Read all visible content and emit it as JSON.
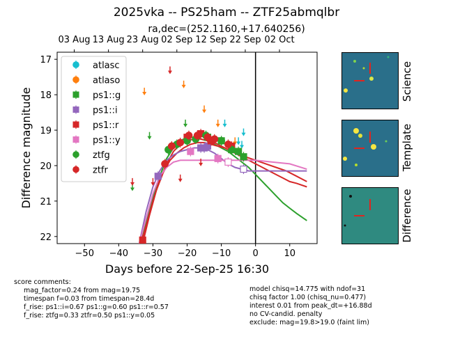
{
  "title": "2025vka -- PS25ham -- ZTF25abmqlbr",
  "subtitle": "ra,dec=(252.1160,+17.640256)",
  "chart_data": {
    "type": "scatter",
    "xlabel": "Days before 22-Sep-25 16:30",
    "ylabel": "Difference magnitude",
    "xlim": [
      -58,
      18
    ],
    "ylim": [
      22.2,
      16.8
    ],
    "y_inverted": true,
    "x_ticks": [
      -50,
      -40,
      -30,
      -20,
      -10,
      0,
      10
    ],
    "y_ticks": [
      17,
      18,
      19,
      20,
      21,
      22
    ],
    "top_axis_ticks": [
      {
        "x": -53,
        "label": "03 Aug"
      },
      {
        "x": -43,
        "label": "13 Aug"
      },
      {
        "x": -33,
        "label": "23 Aug"
      },
      {
        "x": -23,
        "label": "02 Sep"
      },
      {
        "x": -13,
        "label": "12 Sep"
      },
      {
        "x": -3,
        "label": "22 Sep"
      },
      {
        "x": 7,
        "label": "02 Oct"
      }
    ],
    "legend_position": "top-left",
    "now_line_x": 0,
    "series": [
      {
        "name": "atlasc",
        "color": "#17becf",
        "marker": "circle",
        "upper_limits": [
          [
            -9,
            18.8
          ],
          [
            -5,
            19.3
          ],
          [
            -4,
            19.4
          ],
          [
            -3.5,
            19.05
          ]
        ]
      },
      {
        "name": "atlaso",
        "color": "#ff7f0e",
        "marker": "circle",
        "upper_limits": [
          [
            -32.5,
            17.9
          ],
          [
            -21,
            17.7
          ],
          [
            -15,
            18.4
          ],
          [
            -11,
            18.8
          ],
          [
            -6,
            19.3
          ],
          [
            -17,
            19.2
          ]
        ]
      },
      {
        "name": "ps1::g",
        "color": "#2ca02c",
        "marker": "square",
        "points": [
          [
            -14,
            19.2
          ],
          [
            -10,
            19.3
          ],
          [
            -7,
            19.55
          ],
          [
            -5,
            19.6
          ],
          [
            -3.5,
            19.75
          ]
        ]
      },
      {
        "name": "ps1::i",
        "color": "#9467bd",
        "marker": "square",
        "points": [
          [
            -28.5,
            20.3
          ],
          [
            -16,
            19.5
          ],
          [
            -15,
            19.5
          ],
          [
            -14,
            19.45
          ],
          [
            -3.5,
            20.1
          ]
        ],
        "open": [
          [
            -3.5,
            20.1
          ]
        ]
      },
      {
        "name": "ps1::r",
        "color": "#d62728",
        "marker": "square",
        "points": [
          [
            -33,
            22.1
          ],
          [
            -20,
            19.2
          ],
          [
            -16,
            19.1
          ],
          [
            -13,
            19.3
          ],
          [
            -7,
            19.45
          ]
        ]
      },
      {
        "name": "ps1::y",
        "color": "#e377c2",
        "marker": "square",
        "points": [
          [
            -19,
            19.6
          ],
          [
            -11,
            19.8
          ],
          [
            -8,
            19.9
          ]
        ],
        "open": [
          [
            -8,
            19.9
          ]
        ]
      },
      {
        "name": "ztfg",
        "color": "#2ca02c",
        "marker": "circle",
        "points": [
          [
            -25.5,
            19.55
          ],
          [
            -23,
            19.4
          ],
          [
            -20,
            19.3
          ],
          [
            -17.5,
            19.25
          ],
          [
            -14.5,
            19.15
          ],
          [
            -10,
            19.3
          ],
          [
            -7,
            19.55
          ]
        ],
        "upper_limits": [
          [
            -36,
            20.6
          ],
          [
            -31,
            19.15
          ],
          [
            -20.5,
            18.8
          ]
        ]
      },
      {
        "name": "ztfr",
        "color": "#d62728",
        "marker": "circle",
        "points": [
          [
            -26.5,
            19.95
          ],
          [
            -24.5,
            19.45
          ],
          [
            -22,
            19.35
          ],
          [
            -19.5,
            19.15
          ],
          [
            -17,
            19.15
          ],
          [
            -14,
            19.2
          ],
          [
            -12,
            19.25
          ],
          [
            -8,
            19.4
          ]
        ],
        "upper_limits": [
          [
            -36,
            20.45
          ],
          [
            -30,
            20.45
          ],
          [
            -25,
            17.3
          ],
          [
            -22,
            20.35
          ],
          [
            -16,
            19.9
          ]
        ]
      }
    ],
    "model_curves": [
      {
        "name": "ztfg-fit",
        "color": "#2ca02c",
        "points": [
          [
            -34,
            22.2
          ],
          [
            -32,
            21.6
          ],
          [
            -30,
            20.9
          ],
          [
            -28,
            20.3
          ],
          [
            -26,
            19.8
          ],
          [
            -24,
            19.5
          ],
          [
            -22,
            19.3
          ],
          [
            -20,
            19.2
          ],
          [
            -18,
            19.2
          ],
          [
            -16,
            19.25
          ],
          [
            -14,
            19.3
          ],
          [
            -12,
            19.4
          ],
          [
            -10,
            19.5
          ],
          [
            -8,
            19.6
          ],
          [
            -6,
            19.75
          ],
          [
            -4,
            19.9
          ],
          [
            -2,
            20.05
          ],
          [
            0,
            20.25
          ],
          [
            2,
            20.45
          ],
          [
            4,
            20.65
          ],
          [
            6,
            20.85
          ],
          [
            8,
            21.05
          ],
          [
            10,
            21.2
          ],
          [
            12,
            21.35
          ],
          [
            15,
            21.55
          ]
        ]
      },
      {
        "name": "ztfr-fit",
        "color": "#d62728",
        "points": [
          [
            -33.5,
            22.2
          ],
          [
            -32,
            21.7
          ],
          [
            -30,
            21.0
          ],
          [
            -28,
            20.4
          ],
          [
            -26,
            19.95
          ],
          [
            -24,
            19.6
          ],
          [
            -22,
            19.4
          ],
          [
            -20,
            19.3
          ],
          [
            -18,
            19.25
          ],
          [
            -16,
            19.25
          ],
          [
            -14,
            19.3
          ],
          [
            -12,
            19.35
          ],
          [
            -10,
            19.45
          ],
          [
            -8,
            19.55
          ],
          [
            -6,
            19.65
          ],
          [
            -4,
            19.75
          ],
          [
            -2,
            19.85
          ],
          [
            0,
            19.95
          ],
          [
            2,
            20.05
          ],
          [
            4,
            20.15
          ],
          [
            6,
            20.25
          ],
          [
            8,
            20.35
          ],
          [
            10,
            20.45
          ],
          [
            12,
            20.5
          ],
          [
            15,
            20.6
          ]
        ]
      },
      {
        "name": "ps1-r-fit",
        "color": "#d62728",
        "points": [
          [
            -33,
            22.2
          ],
          [
            -31,
            21.4
          ],
          [
            -29,
            20.7
          ],
          [
            -27,
            20.2
          ],
          [
            -25,
            19.85
          ],
          [
            -23,
            19.65
          ],
          [
            -21,
            19.5
          ],
          [
            -19,
            19.4
          ],
          [
            -17,
            19.35
          ],
          [
            -15,
            19.35
          ],
          [
            -13,
            19.4
          ],
          [
            -11,
            19.45
          ],
          [
            -9,
            19.5
          ],
          [
            -7,
            19.6
          ],
          [
            -5,
            19.65
          ],
          [
            -3,
            19.75
          ],
          [
            0,
            19.85
          ],
          [
            3,
            19.95
          ],
          [
            6,
            20.05
          ],
          [
            9,
            20.15
          ],
          [
            12,
            20.3
          ],
          [
            15,
            20.45
          ]
        ]
      },
      {
        "name": "ps1-i-fit",
        "color": "#9467bd",
        "points": [
          [
            -34,
            22.2
          ],
          [
            -32,
            21.3
          ],
          [
            -30,
            20.6
          ],
          [
            -28,
            20.15
          ],
          [
            -26,
            19.85
          ],
          [
            -24,
            19.7
          ],
          [
            -22,
            19.6
          ],
          [
            -20,
            19.55
          ],
          [
            -18,
            19.5
          ],
          [
            -16,
            19.5
          ],
          [
            -14,
            19.55
          ],
          [
            -12,
            19.65
          ],
          [
            -10,
            19.8
          ],
          [
            -8,
            19.95
          ],
          [
            -6,
            20.05
          ],
          [
            -4,
            20.1
          ],
          [
            -2,
            20.15
          ],
          [
            0,
            20.15
          ],
          [
            5,
            20.15
          ],
          [
            10,
            20.15
          ],
          [
            15,
            20.15
          ]
        ]
      },
      {
        "name": "ps1-y-fit",
        "color": "#e377c2",
        "points": [
          [
            -34,
            22.2
          ],
          [
            -32,
            21.5
          ],
          [
            -30,
            20.8
          ],
          [
            -28,
            20.3
          ],
          [
            -26,
            20.05
          ],
          [
            -24,
            19.9
          ],
          [
            -22,
            19.85
          ],
          [
            -20,
            19.85
          ],
          [
            -18,
            19.85
          ],
          [
            -16,
            19.85
          ],
          [
            -14,
            19.85
          ],
          [
            -12,
            19.85
          ],
          [
            -10,
            19.85
          ],
          [
            -8,
            19.85
          ],
          [
            -5,
            19.85
          ],
          [
            -2,
            19.85
          ],
          [
            0,
            19.85
          ],
          [
            5,
            19.9
          ],
          [
            10,
            19.95
          ],
          [
            15,
            20.1
          ]
        ]
      }
    ]
  },
  "stamps": [
    {
      "label": "Science"
    },
    {
      "label": "Template"
    },
    {
      "label": "Difference"
    }
  ],
  "comments_left": {
    "header": "score comments:",
    "lines": [
      "mag_factor=0.24 from mag=19.75",
      "timespan f=0.03 from timespan=28.4d",
      "f_rise: ps1::i=0.67 ps1::g=0.60 ps1::r=0.57",
      "f_rise: ztfg=0.33 ztfr=0.50 ps1::y=0.05"
    ]
  },
  "comments_right": {
    "lines": [
      "model chisq=14.775 with ndof=31",
      "chisq factor 1.00 (chisq_nu=0.477)",
      "interest 0.01 from peak_dt=+16.88d",
      "no CV-candid. penalty",
      "exclude: mag=19.8>19.0 (faint lim)"
    ]
  }
}
